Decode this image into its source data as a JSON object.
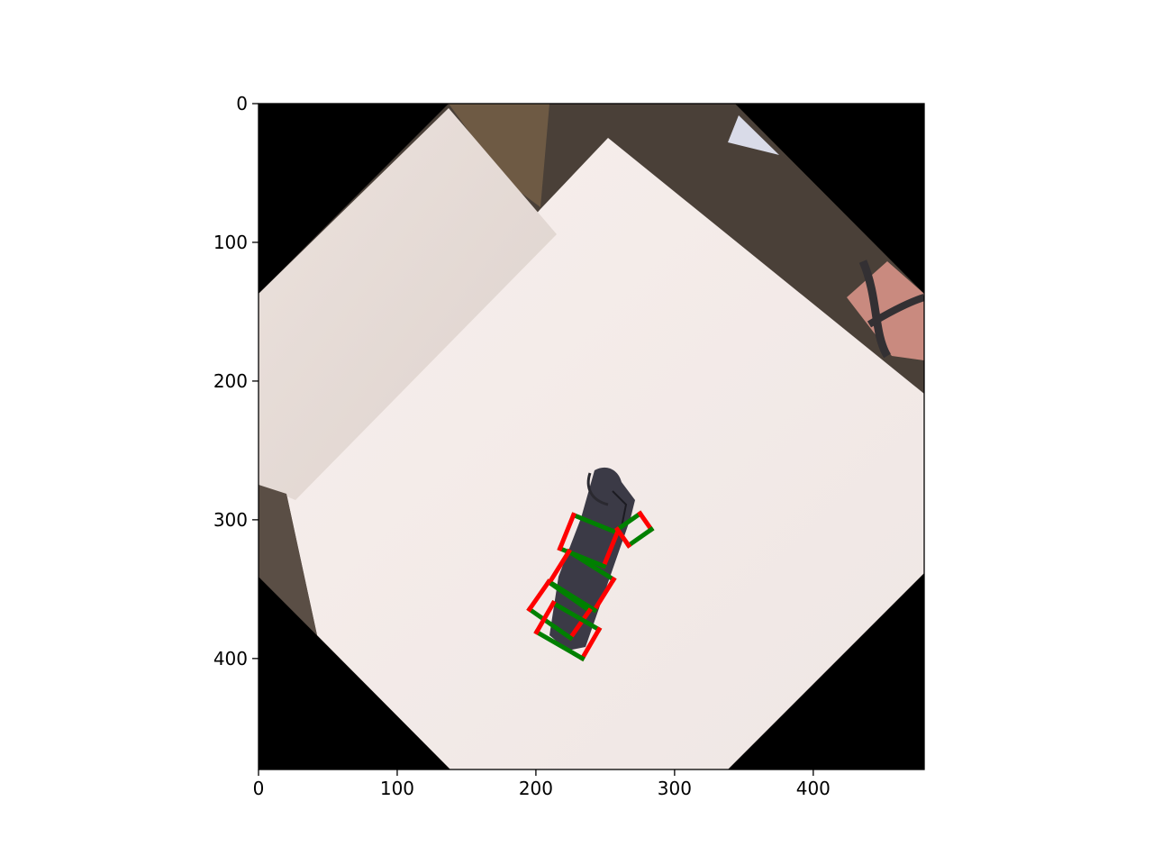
{
  "figure": {
    "background": "#ffffff",
    "axes_color": "#000000"
  },
  "plot": {
    "xlim": [
      0,
      480
    ],
    "ylim": [
      480,
      0
    ],
    "x_ticks": [
      0,
      100,
      200,
      300,
      400
    ],
    "y_ticks": [
      0,
      100,
      200,
      300,
      400
    ],
    "x_tick_labels": [
      "0",
      "100",
      "200",
      "300",
      "400"
    ],
    "y_tick_labels": [
      "0",
      "100",
      "200",
      "300",
      "400"
    ]
  },
  "scene": {
    "description_colors": {
      "background_black": "#000000",
      "floor_carpet": "#4a4038",
      "table_top": "#f3ebe8",
      "box_surface": "#e6dcd8",
      "cardboard_box": "#6e5a44",
      "object_dark": "#3b3a46",
      "grasp_green": "#008000",
      "grasp_red": "#ff0000"
    }
  },
  "grasps": {
    "green_color": "#008000",
    "red_color": "#ff0000",
    "rectangles": [
      {
        "cx": 238,
        "cy": 315,
        "w": 34,
        "h": 26,
        "angle": 22
      },
      {
        "cx": 271,
        "cy": 307,
        "w": 20,
        "h": 14,
        "angle": -35
      },
      {
        "cx": 233,
        "cy": 344,
        "w": 38,
        "h": 26,
        "angle": 32
      },
      {
        "cx": 217,
        "cy": 365,
        "w": 36,
        "h": 24,
        "angle": 35
      },
      {
        "cx": 223,
        "cy": 380,
        "w": 38,
        "h": 24,
        "angle": 30
      }
    ]
  }
}
